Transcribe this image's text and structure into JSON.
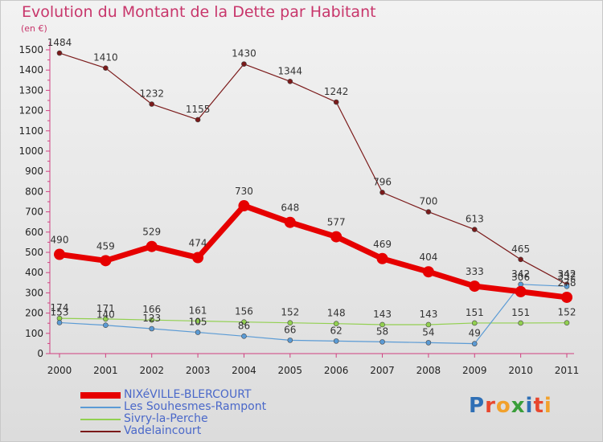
{
  "title": "Evolution du Montant de la Dette par Habitant",
  "unit": "(en €)",
  "logo": {
    "text": "Proxiti",
    "letters": [
      {
        "ch": "P",
        "color": "#2f6fb5"
      },
      {
        "ch": "r",
        "color": "#e8472e"
      },
      {
        "ch": "o",
        "color": "#f2a12c"
      },
      {
        "ch": "x",
        "color": "#3a9e3a"
      },
      {
        "ch": "i",
        "color": "#2f6fb5"
      },
      {
        "ch": "t",
        "color": "#e8472e"
      },
      {
        "ch": "i",
        "color": "#f2a12c"
      }
    ]
  },
  "chart_data": {
    "type": "line",
    "categories": [
      "2000",
      "2001",
      "2002",
      "2003",
      "2004",
      "2005",
      "2006",
      "2007",
      "2008",
      "2009",
      "2010",
      "2011"
    ],
    "ylim": [
      0,
      1500
    ],
    "yticks": [
      0,
      100,
      200,
      300,
      400,
      500,
      600,
      700,
      800,
      900,
      1000,
      1100,
      1200,
      1300,
      1400,
      1500
    ],
    "grid": false,
    "legend_position": "bottom-left",
    "series": [
      {
        "name": "NIXéVILLE-BLERCOURT",
        "color": "#e60000",
        "values": [
          490,
          459,
          529,
          474,
          730,
          648,
          577,
          469,
          404,
          333,
          306,
          278
        ]
      },
      {
        "name": "Les Souhesmes-Rampont",
        "color": "#5b9bd5",
        "values": [
          153,
          140,
          123,
          105,
          86,
          66,
          62,
          58,
          54,
          49,
          342,
          332
        ]
      },
      {
        "name": "Sivry-la-Perche",
        "color": "#92d050",
        "values": [
          174,
          171,
          166,
          161,
          156,
          152,
          148,
          143,
          143,
          151,
          151,
          152
        ]
      },
      {
        "name": "Vadelaincourt",
        "color": "#7b1a1a",
        "values": [
          1484,
          1410,
          1232,
          1155,
          1430,
          1344,
          1242,
          796,
          700,
          613,
          465,
          342
        ]
      }
    ]
  }
}
